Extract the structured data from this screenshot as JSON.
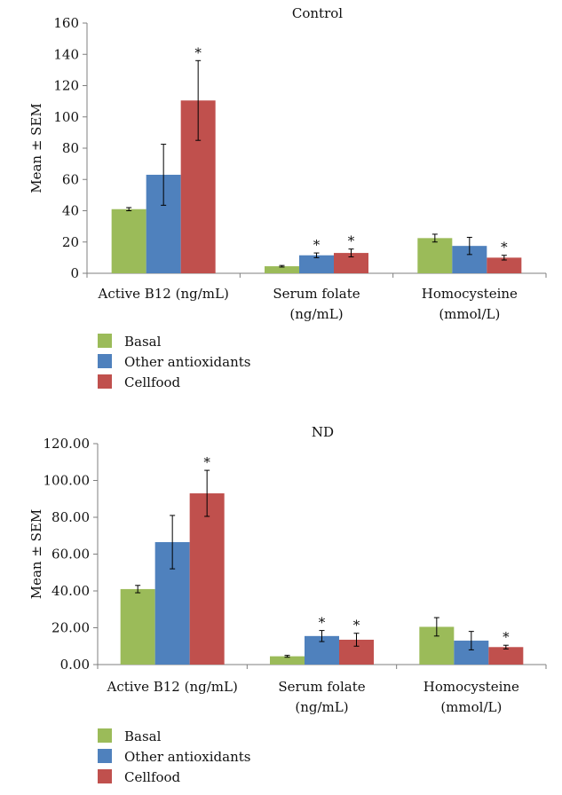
{
  "colors": {
    "basal": "#9bbb59",
    "antioxidants": "#4f81bd",
    "cellfood": "#c0504d"
  },
  "chart_data": [
    {
      "type": "bar",
      "title": "Control",
      "ylabel": "Mean ± SEM",
      "ylim": [
        0,
        160
      ],
      "yticks": [
        "0",
        "20",
        "40",
        "60",
        "80",
        "100",
        "120",
        "140",
        "160"
      ],
      "categories": [
        [
          "Active B12 (ng/mL)"
        ],
        [
          "Serum folate",
          "(ng/mL)"
        ],
        [
          "Homocysteine",
          "(mmol/L)"
        ]
      ],
      "series": [
        {
          "name": "Basal",
          "values": [
            41,
            4.5,
            22.5
          ],
          "errors": [
            1,
            0.5,
            2.5
          ]
        },
        {
          "name": "Other antioxidants",
          "values": [
            63,
            11.5,
            17.5
          ],
          "errors": [
            19.5,
            1.5,
            5.5
          ]
        },
        {
          "name": "Cellfood",
          "values": [
            110.5,
            13,
            10
          ],
          "errors": [
            25.5,
            2.5,
            1.5
          ]
        }
      ],
      "annotations": [
        {
          "series": 2,
          "category": 0,
          "text": "*"
        },
        {
          "series": 1,
          "category": 1,
          "text": "*"
        },
        {
          "series": 2,
          "category": 1,
          "text": "*"
        },
        {
          "series": 2,
          "category": 2,
          "text": "*"
        }
      ],
      "legend": "bottom-left"
    },
    {
      "type": "bar",
      "title": "ND",
      "ylabel": "Mean ± SEM",
      "ylim": [
        0,
        120
      ],
      "yticks": [
        "0.00",
        "20.00",
        "40.00",
        "60.00",
        "80.00",
        "100.00",
        "120.00"
      ],
      "categories": [
        [
          "Active B12 (ng/mL)"
        ],
        [
          "Serum folate",
          "(ng/mL)"
        ],
        [
          "Homocysteine",
          "(mmol/L)"
        ]
      ],
      "series": [
        {
          "name": "Basal",
          "values": [
            41,
            4.5,
            20.5
          ],
          "errors": [
            2,
            0.5,
            5
          ]
        },
        {
          "name": "Other antioxidants",
          "values": [
            66.5,
            15.5,
            13
          ],
          "errors": [
            14.5,
            3,
            5
          ]
        },
        {
          "name": "Cellfood",
          "values": [
            93,
            13.5,
            9.5
          ],
          "errors": [
            12.5,
            3.5,
            1
          ]
        }
      ],
      "annotations": [
        {
          "series": 2,
          "category": 0,
          "text": "*"
        },
        {
          "series": 1,
          "category": 1,
          "text": "*"
        },
        {
          "series": 2,
          "category": 1,
          "text": "*"
        },
        {
          "series": 2,
          "category": 2,
          "text": "*"
        }
      ],
      "legend": "bottom-left"
    }
  ]
}
